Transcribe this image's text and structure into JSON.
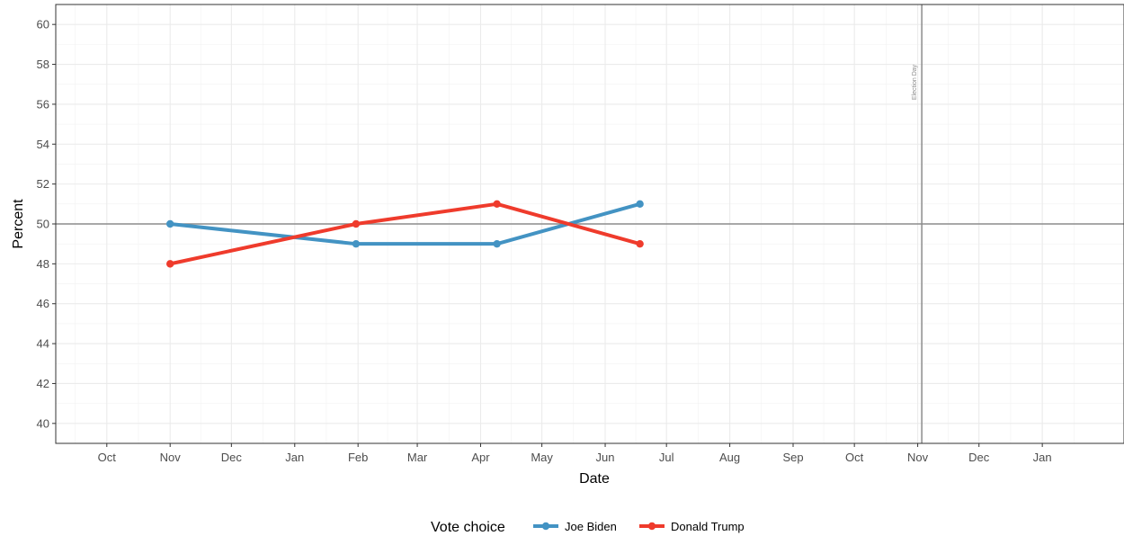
{
  "chart_data": {
    "type": "line",
    "xlabel": "Date",
    "ylabel": "Percent",
    "ylim": [
      39,
      61
    ],
    "xlim": [
      "2019-09-06",
      "2021-02-10"
    ],
    "y_ticks": [
      40,
      42,
      44,
      46,
      48,
      50,
      52,
      54,
      56,
      58,
      60
    ],
    "x_ticks": [
      {
        "date": "2019-10-01",
        "label": "Oct"
      },
      {
        "date": "2019-11-01",
        "label": "Nov"
      },
      {
        "date": "2019-12-01",
        "label": "Dec"
      },
      {
        "date": "2020-01-01",
        "label": "Jan"
      },
      {
        "date": "2020-02-01",
        "label": "Feb"
      },
      {
        "date": "2020-03-01",
        "label": "Mar"
      },
      {
        "date": "2020-04-01",
        "label": "Apr"
      },
      {
        "date": "2020-05-01",
        "label": "May"
      },
      {
        "date": "2020-06-01",
        "label": "Jun"
      },
      {
        "date": "2020-07-01",
        "label": "Jul"
      },
      {
        "date": "2020-08-01",
        "label": "Aug"
      },
      {
        "date": "2020-09-01",
        "label": "Sep"
      },
      {
        "date": "2020-10-01",
        "label": "Oct"
      },
      {
        "date": "2020-11-01",
        "label": "Nov"
      },
      {
        "date": "2020-12-01",
        "label": "Dec"
      },
      {
        "date": "2021-01-01",
        "label": "Jan"
      }
    ],
    "hline": 50,
    "vline": {
      "date": "2020-11-03",
      "label": "Election Day"
    },
    "grid": true,
    "legend": {
      "title": "Vote choice",
      "position": "bottom"
    },
    "series": [
      {
        "name": "Joe Biden",
        "color": "#4393c3",
        "points": [
          {
            "x": "2019-11-01",
            "y": 50
          },
          {
            "x": "2020-01-31",
            "y": 49
          },
          {
            "x": "2020-04-09",
            "y": 49
          },
          {
            "x": "2020-06-18",
            "y": 51
          }
        ]
      },
      {
        "name": "Donald Trump",
        "color": "#ef3b2c",
        "points": [
          {
            "x": "2019-11-01",
            "y": 48
          },
          {
            "x": "2020-01-31",
            "y": 50
          },
          {
            "x": "2020-04-09",
            "y": 51
          },
          {
            "x": "2020-06-18",
            "y": 49
          }
        ]
      }
    ]
  }
}
